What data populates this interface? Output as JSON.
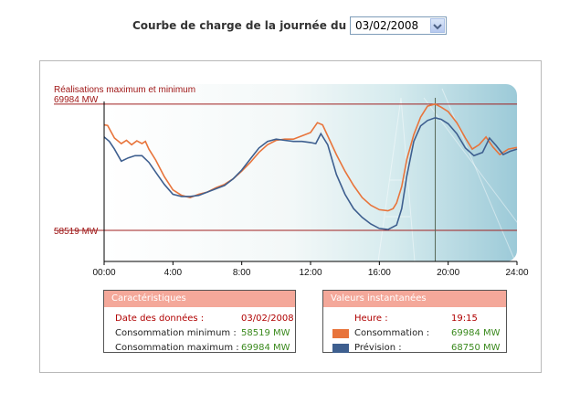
{
  "header": {
    "label": "Courbe de charge de la journée du :",
    "selected_date": "03/02/2008"
  },
  "colors": {
    "consommation": "#e8743b",
    "prevision": "#3e5f8f",
    "reference_line": "#a02020",
    "box_header": "#f4a89a",
    "value_green": "#3b8a1e"
  },
  "chart_data": {
    "type": "line",
    "title": "Réalisations maximum et minimum",
    "max_label": "69984 MW",
    "min_label": "58519 MW",
    "max_value": 69984,
    "min_value": 58519,
    "ylim": [
      55700,
      71800
    ],
    "xlim": [
      0,
      24
    ],
    "x_ticks": [
      "00:00",
      "4:00",
      "8:00",
      "12:00",
      "16:00",
      "20:00",
      "24:00"
    ],
    "cursor_time": 19.25,
    "series": [
      {
        "name": "Consommation",
        "color": "#e8743b",
        "points": [
          [
            0,
            68100
          ],
          [
            0.2,
            68050
          ],
          [
            0.6,
            66900
          ],
          [
            1,
            66400
          ],
          [
            1.3,
            66700
          ],
          [
            1.6,
            66300
          ],
          [
            1.9,
            66650
          ],
          [
            2.2,
            66400
          ],
          [
            2.4,
            66600
          ],
          [
            2.6,
            65900
          ],
          [
            3,
            64900
          ],
          [
            3.5,
            63400
          ],
          [
            4,
            62200
          ],
          [
            4.5,
            61700
          ],
          [
            5,
            61500
          ],
          [
            5.5,
            61800
          ],
          [
            6,
            62000
          ],
          [
            6.5,
            62400
          ],
          [
            7,
            62700
          ],
          [
            7.5,
            63200
          ],
          [
            8,
            63900
          ],
          [
            8.5,
            64700
          ],
          [
            9,
            65600
          ],
          [
            9.5,
            66300
          ],
          [
            10,
            66700
          ],
          [
            10.5,
            66800
          ],
          [
            11,
            66800
          ],
          [
            11.5,
            67100
          ],
          [
            12,
            67400
          ],
          [
            12.4,
            68300
          ],
          [
            12.7,
            68100
          ],
          [
            13,
            67100
          ],
          [
            13.5,
            65400
          ],
          [
            14,
            63900
          ],
          [
            14.5,
            62600
          ],
          [
            15,
            61500
          ],
          [
            15.5,
            60800
          ],
          [
            16,
            60400
          ],
          [
            16.5,
            60300
          ],
          [
            16.8,
            60500
          ],
          [
            17,
            61000
          ],
          [
            17.3,
            62500
          ],
          [
            17.6,
            65000
          ],
          [
            18,
            67200
          ],
          [
            18.4,
            68800
          ],
          [
            18.8,
            69800
          ],
          [
            19.25,
            69984
          ],
          [
            19.6,
            69700
          ],
          [
            20,
            69300
          ],
          [
            20.5,
            68300
          ],
          [
            21,
            66900
          ],
          [
            21.4,
            65900
          ],
          [
            21.8,
            66300
          ],
          [
            22.2,
            67000
          ],
          [
            22.6,
            66100
          ],
          [
            23,
            65400
          ],
          [
            23.5,
            65900
          ],
          [
            24,
            66050
          ]
        ]
      },
      {
        "name": "Prévision",
        "color": "#3e5f8f",
        "points": [
          [
            0,
            67000
          ],
          [
            0.3,
            66600
          ],
          [
            0.6,
            65900
          ],
          [
            1,
            64800
          ],
          [
            1.4,
            65100
          ],
          [
            1.8,
            65300
          ],
          [
            2.2,
            65300
          ],
          [
            2.6,
            64700
          ],
          [
            3,
            63800
          ],
          [
            3.5,
            62700
          ],
          [
            4,
            61800
          ],
          [
            4.5,
            61600
          ],
          [
            5,
            61600
          ],
          [
            5.5,
            61700
          ],
          [
            6,
            62000
          ],
          [
            6.5,
            62300
          ],
          [
            7,
            62600
          ],
          [
            7.5,
            63200
          ],
          [
            8,
            64000
          ],
          [
            8.5,
            65000
          ],
          [
            9,
            66000
          ],
          [
            9.5,
            66600
          ],
          [
            10,
            66800
          ],
          [
            10.5,
            66700
          ],
          [
            11,
            66600
          ],
          [
            11.5,
            66600
          ],
          [
            12,
            66500
          ],
          [
            12.3,
            66400
          ],
          [
            12.6,
            67300
          ],
          [
            13,
            66300
          ],
          [
            13.5,
            63600
          ],
          [
            14,
            61800
          ],
          [
            14.5,
            60500
          ],
          [
            15,
            59700
          ],
          [
            15.5,
            59100
          ],
          [
            16,
            58700
          ],
          [
            16.5,
            58600
          ],
          [
            17,
            59000
          ],
          [
            17.3,
            60500
          ],
          [
            17.6,
            63500
          ],
          [
            18,
            66600
          ],
          [
            18.4,
            68000
          ],
          [
            18.8,
            68500
          ],
          [
            19.25,
            68750
          ],
          [
            19.6,
            68600
          ],
          [
            20,
            68200
          ],
          [
            20.5,
            67300
          ],
          [
            21,
            66000
          ],
          [
            21.5,
            65300
          ],
          [
            22,
            65600
          ],
          [
            22.4,
            66900
          ],
          [
            22.8,
            66200
          ],
          [
            23.2,
            65400
          ],
          [
            23.6,
            65700
          ],
          [
            24,
            65900
          ]
        ]
      }
    ]
  },
  "caracteristiques": {
    "title": "Caractéristiques",
    "rows": [
      {
        "label": "Date des données :",
        "value": "03/02/2008"
      },
      {
        "label": "Consommation minimum :",
        "value": "58519 MW"
      },
      {
        "label": "Consommation maximum :",
        "value": "69984 MW"
      }
    ]
  },
  "valeurs": {
    "title": "Valeurs instantanées",
    "heure_label": "Heure :",
    "heure_value": "19:15",
    "rows": [
      {
        "label": "Consommation :",
        "value": "69984 MW",
        "color": "#e8743b"
      },
      {
        "label": "Prévision :",
        "value": "68750 MW",
        "color": "#3e5f8f"
      }
    ]
  }
}
